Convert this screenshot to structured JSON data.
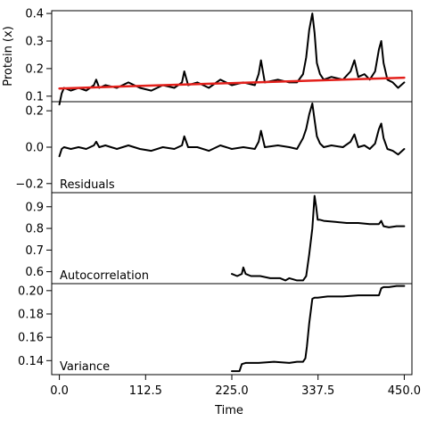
{
  "chart_data": {
    "type": "line",
    "xlabel": "Time",
    "x_ticks": [
      0.0,
      112.5,
      225.0,
      337.5,
      450.0
    ],
    "x_tick_labels": [
      "0.0",
      "112.5",
      "225.0",
      "337.5",
      "450.0"
    ],
    "xlim": [
      -10,
      460
    ],
    "panels": [
      {
        "id": "protein",
        "ylabel": "Protein (x)",
        "label": "",
        "ylim": [
          0.08,
          0.41
        ],
        "y_ticks": [
          0.1,
          0.2,
          0.3,
          0.4
        ],
        "y_tick_labels": [
          "0.1",
          "0.2",
          "0.3",
          "0.4"
        ],
        "series": [
          {
            "color": "#000000",
            "x": [
              0,
              3,
              6,
              15,
              25,
              35,
              45,
              48,
              52,
              60,
              75,
              90,
              105,
              120,
              135,
              150,
              160,
              163,
              168,
              180,
              195,
              210,
              225,
              240,
              255,
              260,
              263,
              268,
              285,
              300,
              310,
              318,
              322,
              326,
              330,
              333,
              336,
              340,
              345,
              355,
              370,
              380,
              385,
              390,
              398,
              405,
              412,
              417,
              420,
              423,
              428,
              435,
              442,
              450
            ],
            "y": [
              0.07,
              0.11,
              0.13,
              0.12,
              0.13,
              0.12,
              0.14,
              0.16,
              0.13,
              0.14,
              0.13,
              0.15,
              0.13,
              0.12,
              0.14,
              0.13,
              0.15,
              0.19,
              0.14,
              0.15,
              0.13,
              0.16,
              0.14,
              0.15,
              0.14,
              0.18,
              0.23,
              0.15,
              0.16,
              0.15,
              0.15,
              0.18,
              0.24,
              0.34,
              0.4,
              0.33,
              0.22,
              0.18,
              0.16,
              0.17,
              0.16,
              0.19,
              0.23,
              0.17,
              0.18,
              0.16,
              0.19,
              0.27,
              0.3,
              0.22,
              0.16,
              0.15,
              0.13,
              0.15
            ]
          },
          {
            "color": "#e3201b",
            "x": [
              0,
              450
            ],
            "y": [
              0.128,
              0.167
            ]
          }
        ]
      },
      {
        "id": "residuals",
        "ylabel": "",
        "label": "Residuals",
        "ylim": [
          -0.25,
          0.25
        ],
        "y_ticks": [
          -0.2,
          0.0,
          0.2
        ],
        "y_tick_labels": [
          "−0.2",
          "0.0",
          "0.2"
        ],
        "series": [
          {
            "color": "#000000",
            "x": [
              0,
              3,
              6,
              15,
              25,
              35,
              45,
              48,
              52,
              60,
              75,
              90,
              105,
              120,
              135,
              150,
              160,
              163,
              168,
              180,
              195,
              210,
              225,
              240,
              255,
              260,
              263,
              268,
              285,
              300,
              310,
              318,
              322,
              326,
              330,
              333,
              336,
              340,
              345,
              355,
              370,
              380,
              385,
              390,
              398,
              405,
              412,
              417,
              420,
              423,
              428,
              435,
              442,
              450
            ],
            "y": [
              -0.05,
              -0.01,
              0.0,
              -0.01,
              0.0,
              -0.01,
              0.01,
              0.03,
              0.0,
              0.01,
              -0.01,
              0.01,
              -0.01,
              -0.02,
              0.0,
              -0.01,
              0.01,
              0.06,
              0.0,
              0.0,
              -0.02,
              0.01,
              -0.01,
              0.0,
              -0.01,
              0.03,
              0.09,
              0.0,
              0.01,
              0.0,
              -0.01,
              0.05,
              0.1,
              0.18,
              0.24,
              0.15,
              0.06,
              0.02,
              0.0,
              0.01,
              0.0,
              0.03,
              0.07,
              0.0,
              0.01,
              -0.01,
              0.02,
              0.1,
              0.13,
              0.05,
              -0.01,
              -0.02,
              -0.04,
              -0.01
            ]
          }
        ]
      },
      {
        "id": "autocorrelation",
        "ylabel": "",
        "label": "Autocorrelation",
        "ylim": [
          0.545,
          0.965
        ],
        "y_ticks": [
          0.6,
          0.7,
          0.8,
          0.9
        ],
        "y_tick_labels": [
          "0.6",
          "0.7",
          "0.8",
          "0.9"
        ],
        "series": [
          {
            "color": "#000000",
            "x": [
              225,
              232,
              238,
              240,
              243,
              250,
              262,
              275,
              288,
              295,
              300,
              310,
              318,
              322,
              326,
              330,
              333,
              335,
              337,
              340,
              345,
              360,
              375,
              390,
              405,
              417,
              420,
              423,
              430,
              440,
              450
            ],
            "y": [
              0.59,
              0.58,
              0.59,
              0.62,
              0.59,
              0.58,
              0.58,
              0.57,
              0.57,
              0.56,
              0.57,
              0.56,
              0.56,
              0.58,
              0.68,
              0.8,
              0.95,
              0.9,
              0.84,
              0.84,
              0.835,
              0.83,
              0.825,
              0.825,
              0.82,
              0.82,
              0.835,
              0.81,
              0.805,
              0.81,
              0.81
            ]
          }
        ]
      },
      {
        "id": "variance",
        "ylabel": "",
        "label": "Variance",
        "ylim": [
          0.128,
          0.206
        ],
        "y_ticks": [
          0.14,
          0.16,
          0.18,
          0.2
        ],
        "y_tick_labels": [
          "0.14",
          "0.16",
          "0.18",
          "0.20"
        ],
        "series": [
          {
            "color": "#000000",
            "x": [
              225,
              235,
              238,
              243,
              260,
              280,
              300,
              310,
              318,
              321,
              323,
              326,
              330,
              333,
              337,
              350,
              370,
              390,
              410,
              417,
              420,
              423,
              430,
              440,
              450
            ],
            "y": [
              0.131,
              0.131,
              0.137,
              0.138,
              0.138,
              0.139,
              0.138,
              0.139,
              0.139,
              0.142,
              0.152,
              0.172,
              0.193,
              0.194,
              0.194,
              0.195,
              0.195,
              0.196,
              0.196,
              0.196,
              0.202,
              0.203,
              0.203,
              0.204,
              0.204
            ]
          }
        ]
      }
    ]
  }
}
